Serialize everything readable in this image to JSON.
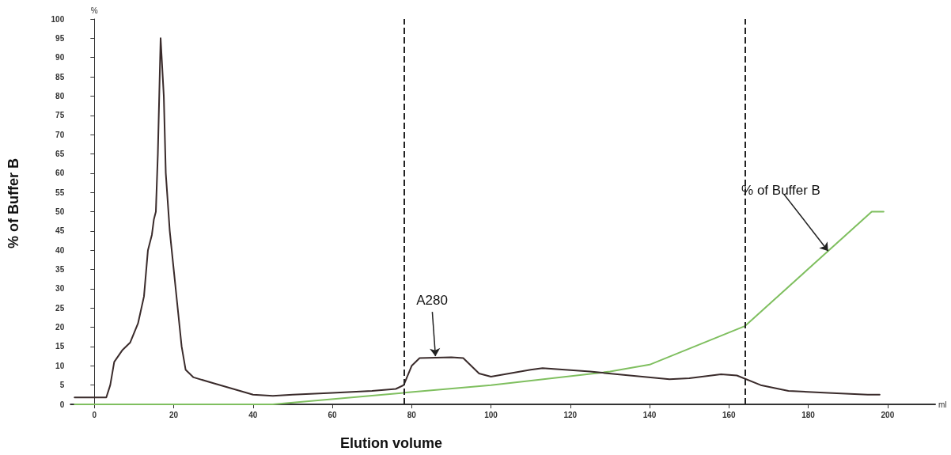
{
  "chart_data": {
    "type": "line",
    "xlabel": "Elution volume",
    "ylabel": "% of Buffer B",
    "xlim": [
      -6,
      212
    ],
    "xticks": [
      0,
      20,
      40,
      60,
      80,
      100,
      120,
      140,
      160,
      180,
      200
    ],
    "ylim": [
      0,
      100
    ],
    "yticks": [
      0,
      5,
      10,
      15,
      20,
      25,
      30,
      35,
      40,
      45,
      50,
      55,
      60,
      65,
      70,
      75,
      80,
      85,
      90,
      95,
      100
    ],
    "marker": "none",
    "line_style": "solid",
    "series": [
      {
        "color": "#3a2b2b",
        "x": [
          -5,
          3,
          4,
          5,
          7,
          9,
          11,
          12.5,
          13.5,
          14.5,
          15,
          15.5,
          16,
          16.7,
          17.5,
          18,
          19,
          20,
          21,
          22,
          23,
          25,
          30,
          35,
          40,
          45,
          50,
          60,
          70,
          76,
          78,
          80,
          82,
          90,
          93,
          97,
          100,
          110,
          113,
          125,
          135,
          145,
          150,
          158,
          162,
          168,
          175,
          185,
          195,
          198
        ],
        "values": [
          1.8,
          1.8,
          5,
          11,
          14,
          16,
          21,
          28,
          40,
          44,
          48,
          50,
          65,
          95,
          80,
          60,
          45,
          35,
          25,
          15,
          9,
          7,
          5.5,
          4,
          2.5,
          2.2,
          2.5,
          3,
          3.5,
          4,
          5,
          10,
          12,
          12.2,
          12,
          8,
          7.2,
          9,
          9.4,
          8.5,
          7.5,
          6.5,
          6.8,
          7.8,
          7.5,
          5,
          3.5,
          3,
          2.5,
          2.5
        ]
      },
      {
        "color": "#7fbf5f",
        "x": [
          -5,
          45,
          100,
          130,
          140,
          164,
          196,
          199
        ],
        "values": [
          0,
          0,
          5,
          8.5,
          10.3,
          20.3,
          50,
          50
        ]
      }
    ],
    "ref_lines": [
      {
        "axis": "x",
        "value": 78,
        "color": "#222222",
        "line_style": "dashed"
      },
      {
        "axis": "x",
        "value": 164,
        "color": "#222222",
        "line_style": "dashed"
      }
    ],
    "annotations": [
      {
        "text": "A280",
        "x": 86,
        "y": 12.5
      },
      {
        "text": "% of Buffer B",
        "x": 185,
        "y": 39.8
      },
      "%",
      "ml"
    ]
  }
}
